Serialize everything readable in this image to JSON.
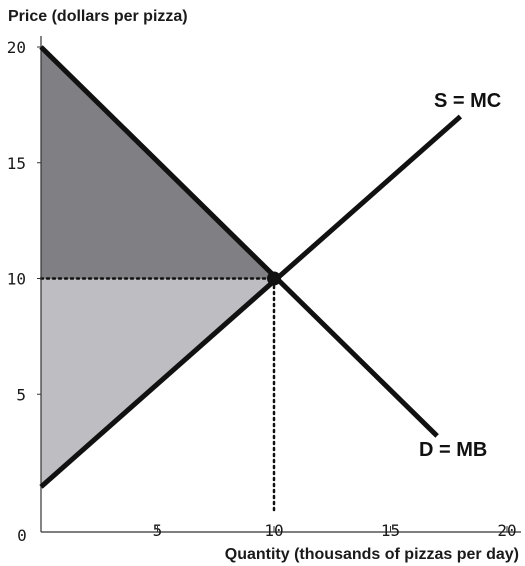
{
  "chart_data": {
    "type": "line",
    "xlabel": "Quantity (thousands of pizzas per day)",
    "ylabel": "Price (dollars per pizza)",
    "xlim": [
      0,
      20
    ],
    "ylim": [
      0,
      20
    ],
    "x_ticks": [
      5,
      10,
      15,
      20
    ],
    "y_ticks": [
      5,
      10,
      15,
      20
    ],
    "origin_label": "0",
    "series": [
      {
        "name": "S = MC",
        "x": [
          0,
          18
        ],
        "y": [
          1,
          17
        ]
      },
      {
        "name": "D = MB",
        "x": [
          0,
          17
        ],
        "y": [
          20,
          3.2
        ]
      }
    ],
    "equilibrium": {
      "x": 10,
      "y": 10
    },
    "shaded_regions": [
      {
        "fill": "#7f7f84",
        "points": [
          [
            0,
            20
          ],
          [
            10,
            10
          ],
          [
            0,
            10
          ]
        ]
      },
      {
        "fill": "#bdbdc2",
        "points": [
          [
            0,
            10
          ],
          [
            10,
            10
          ],
          [
            0,
            1
          ]
        ]
      }
    ],
    "guide_lines": [
      {
        "from": [
          0,
          10
        ],
        "to": [
          10,
          10
        ],
        "style": "dotted"
      },
      {
        "from": [
          10,
          0
        ],
        "to": [
          10,
          10
        ],
        "style": "dotted"
      }
    ],
    "colors": {
      "curves": "#111111",
      "axis": "#333333"
    }
  }
}
